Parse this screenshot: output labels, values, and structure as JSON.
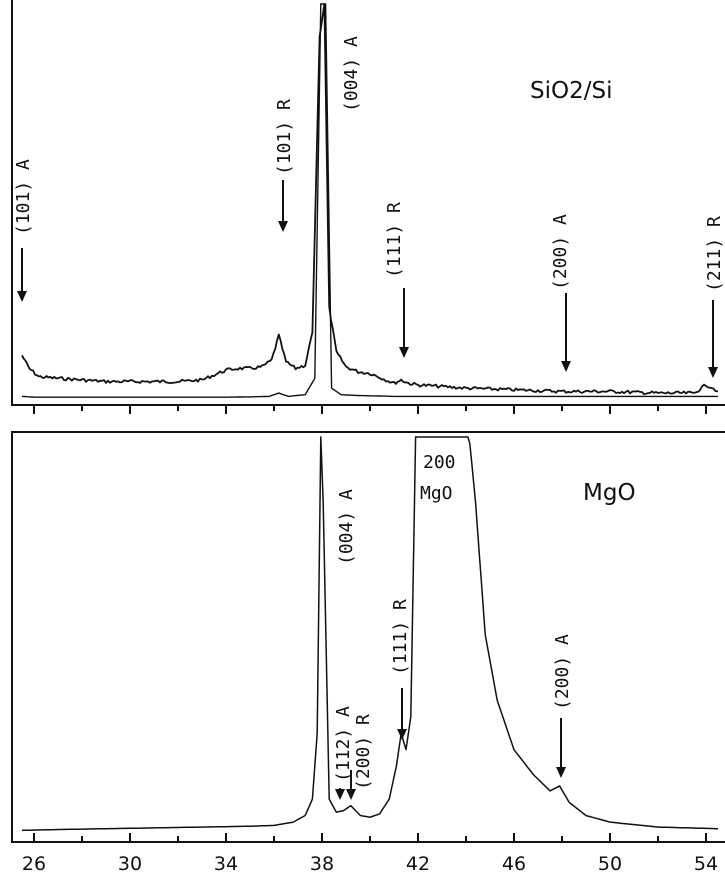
{
  "chart_data": [
    {
      "type": "line",
      "panel_label": "SiO2/Si",
      "xlabel": "",
      "ylabel": "",
      "xlim": [
        25.5,
        54.5
      ],
      "series": [
        {
          "x": [
            25.5,
            25.8,
            26.2,
            27,
            28,
            29,
            30,
            31,
            32,
            33,
            33.5,
            34,
            34.5,
            35,
            35.5,
            35.9,
            36.2,
            36.5,
            36.9,
            37.3,
            37.6,
            37.9,
            38.1,
            38.3,
            38.6,
            39.0,
            39.5,
            40,
            40.5,
            41.0,
            41.3,
            41.6,
            42,
            43,
            44,
            46,
            48,
            50,
            52,
            53.5,
            54.0,
            54.3,
            54.5
          ],
          "y": [
            26,
            18,
            13,
            12,
            11,
            10,
            10,
            10,
            10,
            11,
            14,
            17,
            18,
            18,
            19,
            23,
            38,
            22,
            18,
            20,
            40,
            220,
            240,
            55,
            28,
            19,
            16,
            15,
            12,
            9,
            11,
            9,
            8,
            7,
            6,
            5,
            4,
            4,
            3,
            3,
            8,
            6,
            4
          ]
        },
        {
          "x": [
            25.5,
            26,
            28,
            30,
            32,
            34,
            35,
            35.8,
            36.2,
            36.6,
            37.3,
            37.7,
            37.95,
            38.15,
            38.4,
            38.8,
            39.5,
            41,
            43,
            46,
            50,
            54.5
          ],
          "y": [
            1,
            0.5,
            0.5,
            0.5,
            0.5,
            0.5,
            0.7,
            1,
            3,
            1,
            2,
            12,
            240,
            240,
            6,
            2,
            1.5,
            1,
            1,
            1,
            1,
            1
          ]
        }
      ],
      "annotations": [
        "(101) A",
        "(101) R",
        "(004) A",
        "(111) R",
        "(200) A",
        "(211) R"
      ]
    },
    {
      "type": "line",
      "panel_label": "MgO",
      "xlabel": "",
      "ylabel": "",
      "xlim": [
        25.5,
        54.5
      ],
      "x_ticks": [
        26,
        30,
        34,
        38,
        42,
        46,
        50,
        54
      ],
      "series": [
        {
          "x": [
            25.5,
            27,
            29,
            31,
            33,
            35,
            36,
            36.8,
            37.3,
            37.6,
            37.8,
            37.95,
            38.05,
            38.3,
            38.6,
            38.9,
            39.2,
            39.6,
            40.0,
            40.4,
            40.8,
            41.1,
            41.3,
            41.5,
            41.7,
            41.9,
            42.1,
            44.0,
            44.4,
            44.8,
            45.3,
            46,
            46.8,
            47.5,
            47.9,
            48.3,
            49,
            50,
            52,
            54.5
          ],
          "y": [
            1,
            1.5,
            2,
            2.5,
            3,
            3.5,
            4,
            6,
            10,
            20,
            60,
            240,
            200,
            20,
            12,
            13,
            16,
            10,
            9,
            11,
            20,
            40,
            60,
            50,
            70,
            240,
            260,
            260,
            200,
            120,
            80,
            50,
            35,
            25,
            28,
            18,
            10,
            6,
            3,
            2
          ]
        }
      ],
      "annotations": [
        "(004) A",
        "(112) A",
        "(200) R",
        "(111) R",
        "200",
        "MgO",
        "(200) A"
      ]
    }
  ]
}
